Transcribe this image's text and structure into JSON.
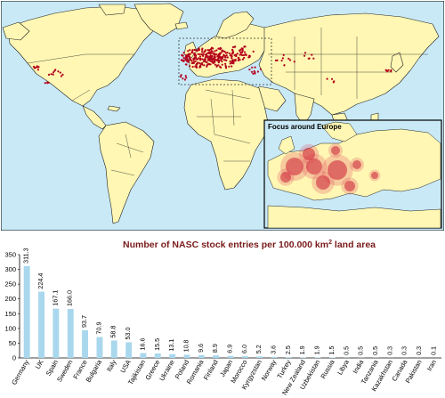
{
  "map": {
    "inset_title": "Focus around Europe",
    "colors": {
      "ocean": "#c9e9f7",
      "land": "#fff7b3",
      "border": "#222222",
      "dot": "#b3001b"
    }
  },
  "chart_data": {
    "type": "bar",
    "title": "Number of NASC stock entries per 100.000 km",
    "title_superscript": "2",
    "title_suffix": " land area",
    "xlabel": "",
    "ylabel": "",
    "ylim": [
      0,
      350
    ],
    "yticks": [
      0,
      50,
      100,
      150,
      200,
      250,
      300,
      350
    ],
    "grid": false,
    "bar_color": "#a9d7ed",
    "categories": [
      "Germany",
      "UK",
      "Spain",
      "Sweden",
      "France",
      "Bulgaria",
      "Italy",
      "USA",
      "Tajikistan",
      "Greece",
      "Ukraine",
      "Poland",
      "Romania",
      "Finland",
      "Japan",
      "Morocco",
      "Kyrgyzstan",
      "Norway",
      "Turkey",
      "New Zealand",
      "Uzbekistan",
      "Russia",
      "Libya",
      "India",
      "Tanzania",
      "Kazakhstan",
      "Canada",
      "Pakistan",
      "Iran"
    ],
    "values": [
      311.3,
      224.4,
      167.1,
      166.0,
      93.7,
      70.9,
      58.8,
      53.0,
      16.6,
      15.5,
      13.1,
      10.8,
      9.6,
      8.9,
      6.9,
      6.0,
      5.2,
      3.6,
      2.5,
      1.9,
      1.9,
      1.5,
      0.5,
      0.5,
      0.5,
      0.3,
      0.3,
      0.3,
      0.1
    ],
    "value_labels": [
      "311.3",
      "224.4",
      "167.1",
      "166.0",
      "93.7",
      "70.9",
      "58.8",
      "53.0",
      "16.6",
      "15.5",
      "13.1",
      "10.8",
      "9.6",
      "8.9",
      "6.9",
      "6.0",
      "5.2",
      "3.6",
      "2.5",
      "1.9",
      "1.9",
      "1.5",
      "0.5",
      "0.5",
      "0.5",
      "0.3",
      "0.3",
      "0.3",
      "0.1"
    ]
  }
}
